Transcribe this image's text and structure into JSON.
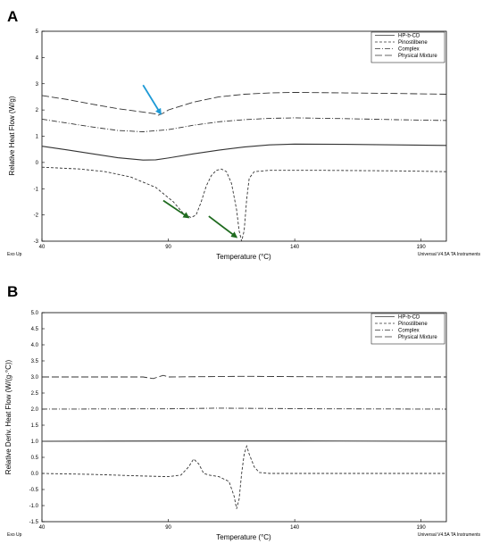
{
  "chart_data": [
    {
      "panel": "A",
      "type": "line",
      "xlabel": "Temperature (°C)",
      "ylabel": "Relative Heat Flow (W/g)",
      "xlim": [
        40,
        200
      ],
      "ylim": [
        -3,
        5
      ],
      "xticks": [
        40,
        90,
        140,
        190
      ],
      "yticks": [
        -3,
        -2,
        -1,
        0,
        1,
        2,
        3,
        4,
        5
      ],
      "bottom_left_text": "Exo Up",
      "bottom_right_text": "Universal V4.5A TA Instruments",
      "legend_position": "top-right",
      "series": [
        {
          "name": "HP-b-CD",
          "dash": "solid",
          "points": [
            [
              40,
              0.62
            ],
            [
              50,
              0.48
            ],
            [
              60,
              0.33
            ],
            [
              70,
              0.18
            ],
            [
              80,
              0.09
            ],
            [
              85,
              0.1
            ],
            [
              90,
              0.17
            ],
            [
              100,
              0.33
            ],
            [
              110,
              0.47
            ],
            [
              120,
              0.59
            ],
            [
              130,
              0.67
            ],
            [
              140,
              0.7
            ],
            [
              160,
              0.69
            ],
            [
              180,
              0.67
            ],
            [
              200,
              0.65
            ]
          ]
        },
        {
          "name": "Pinostilbene",
          "dash": "dash",
          "points": [
            [
              40,
              -0.18
            ],
            [
              55,
              -0.25
            ],
            [
              65,
              -0.35
            ],
            [
              75,
              -0.55
            ],
            [
              85,
              -0.95
            ],
            [
              92,
              -1.5
            ],
            [
              96,
              -1.95
            ],
            [
              99,
              -2.1
            ],
            [
              101,
              -2.0
            ],
            [
              103,
              -1.5
            ],
            [
              105,
              -0.9
            ],
            [
              107,
              -0.5
            ],
            [
              109,
              -0.3
            ],
            [
              111,
              -0.25
            ],
            [
              113,
              -0.35
            ],
            [
              115,
              -0.8
            ],
            [
              117,
              -1.8
            ],
            [
              118,
              -2.6
            ],
            [
              119,
              -3.0
            ],
            [
              120,
              -2.6
            ],
            [
              121,
              -1.4
            ],
            [
              122,
              -0.6
            ],
            [
              124,
              -0.35
            ],
            [
              130,
              -0.3
            ],
            [
              150,
              -0.3
            ],
            [
              180,
              -0.32
            ],
            [
              200,
              -0.35
            ]
          ]
        },
        {
          "name": "Complex",
          "dash": "dashdot",
          "points": [
            [
              40,
              1.65
            ],
            [
              50,
              1.5
            ],
            [
              60,
              1.35
            ],
            [
              70,
              1.22
            ],
            [
              80,
              1.17
            ],
            [
              90,
              1.25
            ],
            [
              100,
              1.42
            ],
            [
              110,
              1.55
            ],
            [
              120,
              1.63
            ],
            [
              130,
              1.68
            ],
            [
              140,
              1.7
            ],
            [
              160,
              1.67
            ],
            [
              180,
              1.63
            ],
            [
              200,
              1.6
            ]
          ]
        },
        {
          "name": "Physical Mixture",
          "dash": "longdash",
          "points": [
            [
              40,
              2.55
            ],
            [
              50,
              2.4
            ],
            [
              60,
              2.22
            ],
            [
              70,
              2.05
            ],
            [
              80,
              1.92
            ],
            [
              85,
              1.85
            ],
            [
              86,
              1.8
            ],
            [
              88,
              1.88
            ],
            [
              90,
              2.0
            ],
            [
              100,
              2.3
            ],
            [
              110,
              2.5
            ],
            [
              120,
              2.6
            ],
            [
              130,
              2.65
            ],
            [
              140,
              2.67
            ],
            [
              160,
              2.65
            ],
            [
              180,
              2.63
            ],
            [
              200,
              2.6
            ]
          ]
        }
      ],
      "arrows": [
        {
          "color": "#1e9ad6",
          "from": [
            80,
            2.95
          ],
          "to": [
            87,
            1.85
          ]
        },
        {
          "color": "#1f6b1f",
          "from": [
            88,
            -1.45
          ],
          "to": [
            98,
            -2.1
          ]
        },
        {
          "color": "#1f6b1f",
          "from": [
            106,
            -2.05
          ],
          "to": [
            117,
            -2.85
          ]
        }
      ]
    },
    {
      "panel": "B",
      "type": "line",
      "xlabel": "Temperature (°C)",
      "ylabel": "Relative Deriv. Heat Flow (W/(g·°C))",
      "xlim": [
        40,
        200
      ],
      "ylim": [
        -1.5,
        5.0
      ],
      "xticks": [
        40,
        90,
        140,
        190
      ],
      "yticks": [
        -1.5,
        -1.0,
        -0.5,
        0.0,
        0.5,
        1.0,
        1.5,
        2.0,
        2.5,
        3.0,
        3.5,
        4.0,
        4.5,
        5.0
      ],
      "bottom_left_text": "Exo Up",
      "bottom_right_text": "Universal V4.5A TA Instruments",
      "legend_position": "top-right",
      "series": [
        {
          "name": "HP-b-CD",
          "dash": "solid",
          "points": [
            [
              40,
              1.0
            ],
            [
              100,
              1.01
            ],
            [
              140,
              1.01
            ],
            [
              200,
              1.0
            ]
          ]
        },
        {
          "name": "Pinostilbene",
          "dash": "dash",
          "points": [
            [
              40,
              0.0
            ],
            [
              60,
              -0.03
            ],
            [
              80,
              -0.08
            ],
            [
              90,
              -0.1
            ],
            [
              95,
              -0.05
            ],
            [
              98,
              0.2
            ],
            [
              100,
              0.45
            ],
            [
              102,
              0.3
            ],
            [
              104,
              0.0
            ],
            [
              106,
              -0.05
            ],
            [
              110,
              -0.1
            ],
            [
              114,
              -0.25
            ],
            [
              116,
              -0.7
            ],
            [
              117,
              -1.1
            ],
            [
              118,
              -0.8
            ],
            [
              119,
              0.0
            ],
            [
              120,
              0.6
            ],
            [
              121,
              0.85
            ],
            [
              122,
              0.6
            ],
            [
              124,
              0.2
            ],
            [
              126,
              0.03
            ],
            [
              130,
              0.0
            ],
            [
              160,
              0.0
            ],
            [
              200,
              0.0
            ]
          ]
        },
        {
          "name": "Complex",
          "dash": "dashdot",
          "points": [
            [
              40,
              2.0
            ],
            [
              90,
              2.01
            ],
            [
              110,
              2.03
            ],
            [
              150,
              2.01
            ],
            [
              200,
              2.0
            ]
          ]
        },
        {
          "name": "Physical Mixture",
          "dash": "longdash",
          "points": [
            [
              40,
              3.0
            ],
            [
              80,
              3.0
            ],
            [
              84,
              2.95
            ],
            [
              86,
              3.0
            ],
            [
              88,
              3.05
            ],
            [
              90,
              3.0
            ],
            [
              120,
              3.02
            ],
            [
              160,
              3.0
            ],
            [
              200,
              3.0
            ]
          ]
        }
      ]
    }
  ]
}
